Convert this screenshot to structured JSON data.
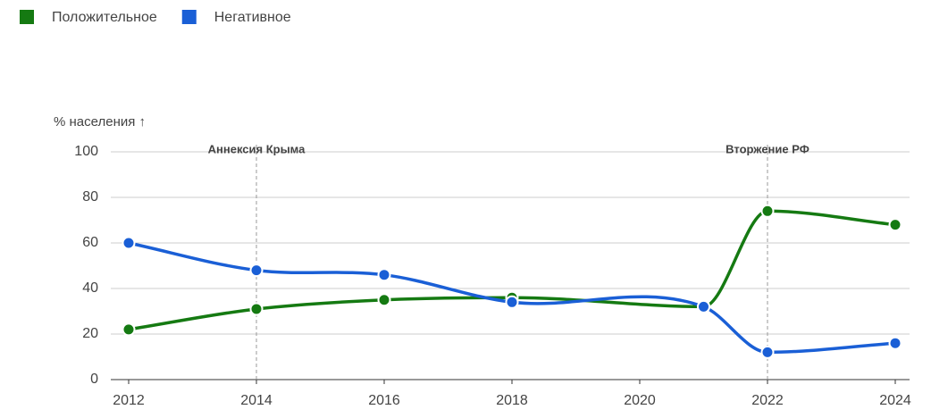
{
  "chart_data": {
    "type": "line",
    "y_label": "% населения ↑",
    "x": [
      2012,
      2014,
      2016,
      2018,
      2021,
      2022,
      2024
    ],
    "series": [
      {
        "name": "Положительное",
        "color": "#157a12",
        "values": [
          22,
          31,
          35,
          36,
          32,
          74,
          68
        ]
      },
      {
        "name": "Негативное",
        "color": "#1a5fd6",
        "values": [
          60,
          48,
          46,
          34,
          32,
          12,
          16
        ]
      }
    ],
    "annotations": [
      {
        "x": 2014,
        "label": "Аннексия Крыма"
      },
      {
        "x": 2022,
        "label": "Вторжение РФ"
      }
    ],
    "xlim": [
      2012,
      2024
    ],
    "xticks": [
      2012,
      2014,
      2016,
      2018,
      2020,
      2022,
      2024
    ],
    "ylim": [
      0,
      100
    ],
    "yticks": [
      0,
      20,
      40,
      60,
      80,
      100
    ],
    "grid": true,
    "legend": "top-left"
  }
}
